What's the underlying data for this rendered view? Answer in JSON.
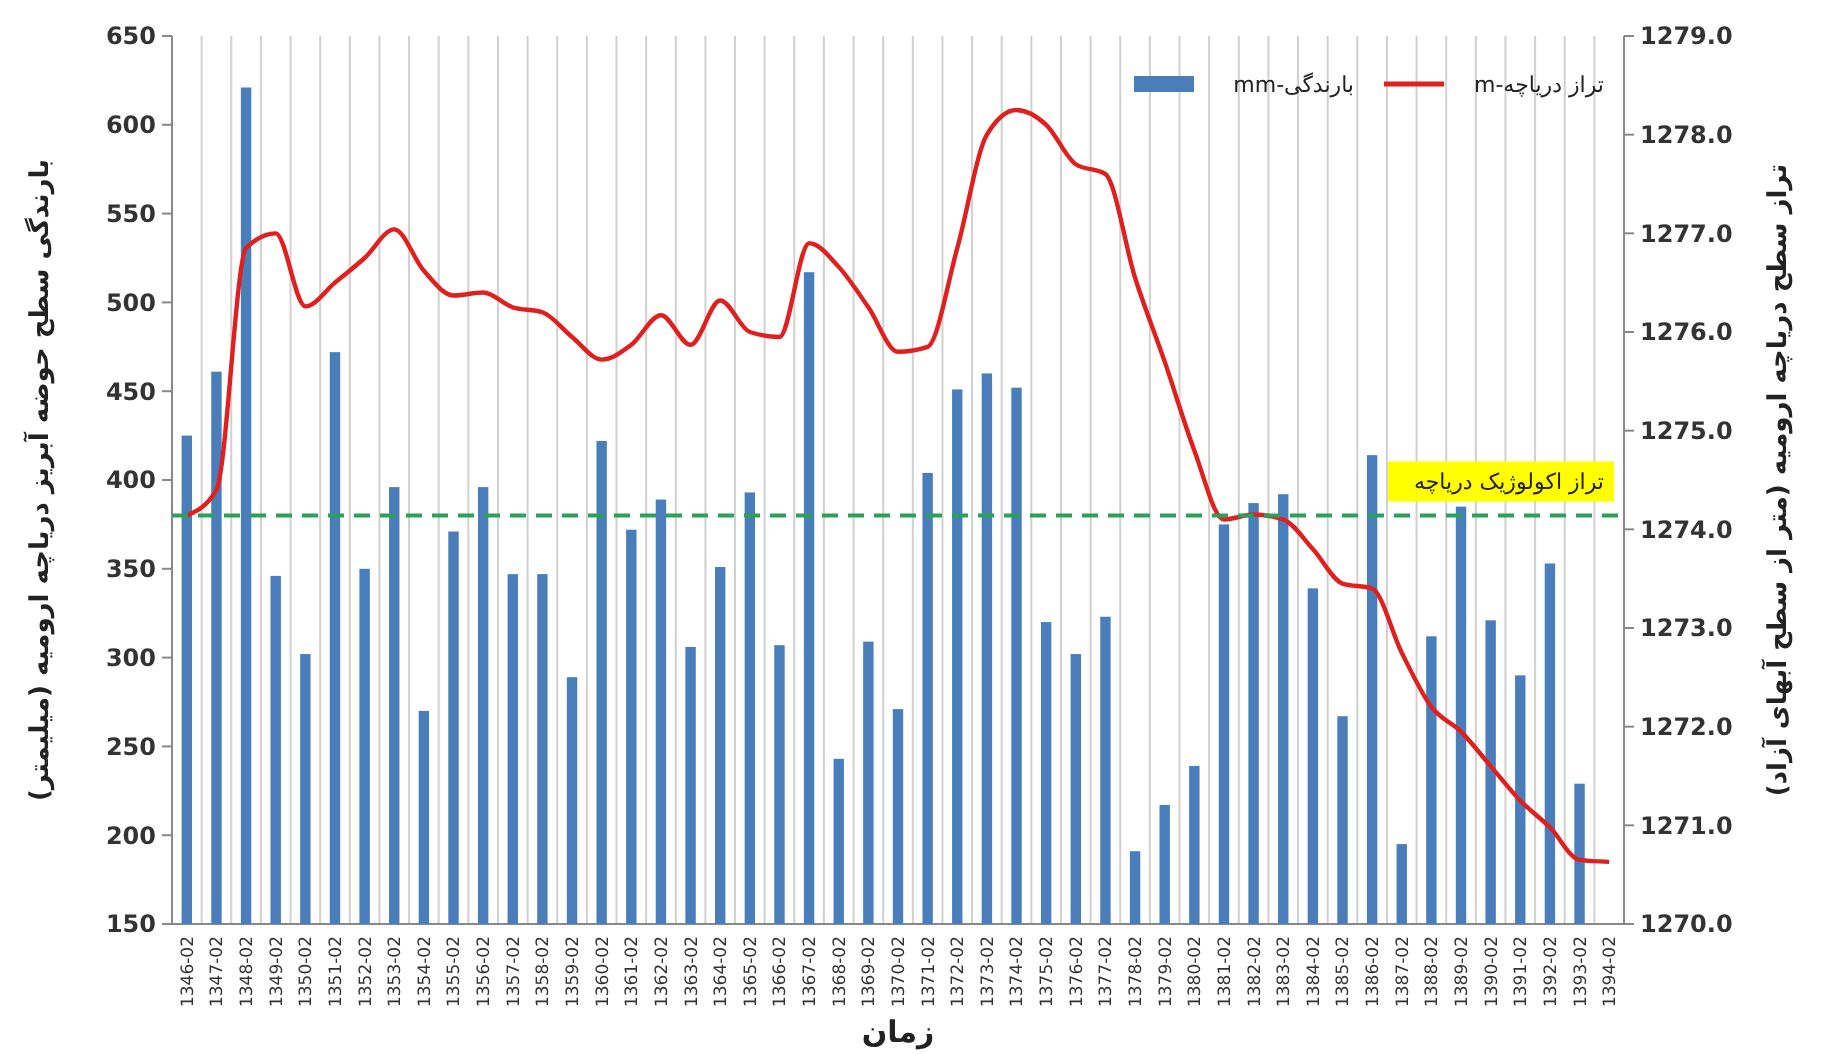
{
  "chart_data": {
    "type": "bar",
    "xlabel": "زمان",
    "ylabel": "بارندگی سطح حوضه آبریز دریاچه ارومیه (میلیمتر)",
    "y2label": "تراز سطح دریاچه ارومیه (متر از سطح آبهای آزاد)",
    "categories": [
      "1346-02",
      "1347-02",
      "1348-02",
      "1349-02",
      "1350-02",
      "1351-02",
      "1352-02",
      "1353-02",
      "1354-02",
      "1355-02",
      "1356-02",
      "1357-02",
      "1358-02",
      "1359-02",
      "1360-02",
      "1361-02",
      "1362-02",
      "1363-02",
      "1364-02",
      "1365-02",
      "1366-02",
      "1367-02",
      "1368-02",
      "1369-02",
      "1370-02",
      "1371-02",
      "1372-02",
      "1373-02",
      "1374-02",
      "1375-02",
      "1376-02",
      "1377-02",
      "1378-02",
      "1379-02",
      "1380-02",
      "1381-02",
      "1382-02",
      "1383-02",
      "1384-02",
      "1385-02",
      "1386-02",
      "1387-02",
      "1388-02",
      "1389-02",
      "1390-02",
      "1391-02",
      "1392-02",
      "1393-02",
      "1394-02"
    ],
    "series": [
      {
        "name": "بارندگی-mm",
        "color": "#4a7ebb",
        "values": [
          425,
          461,
          621,
          346,
          302,
          472,
          350,
          396,
          270,
          371,
          396,
          347,
          347,
          289,
          422,
          372,
          389,
          306,
          351,
          393,
          307,
          517,
          243,
          309,
          271,
          404,
          451,
          460,
          452,
          320,
          302,
          323,
          191,
          217,
          239,
          375,
          387,
          392,
          339,
          267,
          414,
          195,
          312,
          385,
          321,
          290,
          353,
          229,
          null
        ]
      },
      {
        "name": "تراز دریاچه-m",
        "type": "line",
        "axis": "y2",
        "color": "#e0201f",
        "values": [
          1274.14,
          1274.4,
          1276.85,
          1277.0,
          1276.26,
          1276.5,
          1276.75,
          1277.04,
          1276.62,
          1276.37,
          1276.4,
          1276.25,
          1276.2,
          1275.95,
          1275.72,
          1275.87,
          1276.17,
          1275.87,
          1276.32,
          1276.0,
          1275.95,
          1276.9,
          1276.66,
          1276.25,
          1275.8,
          1275.85,
          1276.85,
          1278.0,
          1278.25,
          1278.1,
          1277.7,
          1277.6,
          1276.55,
          1275.7,
          1274.8,
          1274.1,
          1274.15,
          1274.1,
          1273.8,
          1273.45,
          1273.4,
          1272.75,
          1272.2,
          1271.95,
          1271.6,
          1271.25,
          1270.98,
          1270.65,
          1270.63
        ]
      }
    ],
    "ylim": [
      150,
      650
    ],
    "yticks": [
      150,
      200,
      250,
      300,
      350,
      400,
      450,
      500,
      550,
      600,
      650
    ],
    "y2lim": [
      1270,
      1279
    ],
    "y2ticks": [
      {
        "value": 1270,
        "label": "1270.0"
      },
      {
        "value": 1271,
        "label": "1271.0"
      },
      {
        "value": 1272,
        "label": "1272.0"
      },
      {
        "value": 1273,
        "label": "1273.0"
      },
      {
        "value": 1274,
        "label": "1274.0"
      },
      {
        "value": 1275,
        "label": "1275.0"
      },
      {
        "value": 1276,
        "label": "1276.0"
      },
      {
        "value": 1277,
        "label": "1277.0"
      },
      {
        "value": 1278,
        "label": "1278.0"
      },
      {
        "value": 1279,
        "label": "1279.0"
      }
    ],
    "ref_lines": [
      {
        "axis": "y",
        "value": 380,
        "label": "تراز اکولوژیک دریاچه",
        "color": "#2ca05a",
        "line_style": "dashed"
      }
    ],
    "grid": "x",
    "legend": "top right"
  }
}
